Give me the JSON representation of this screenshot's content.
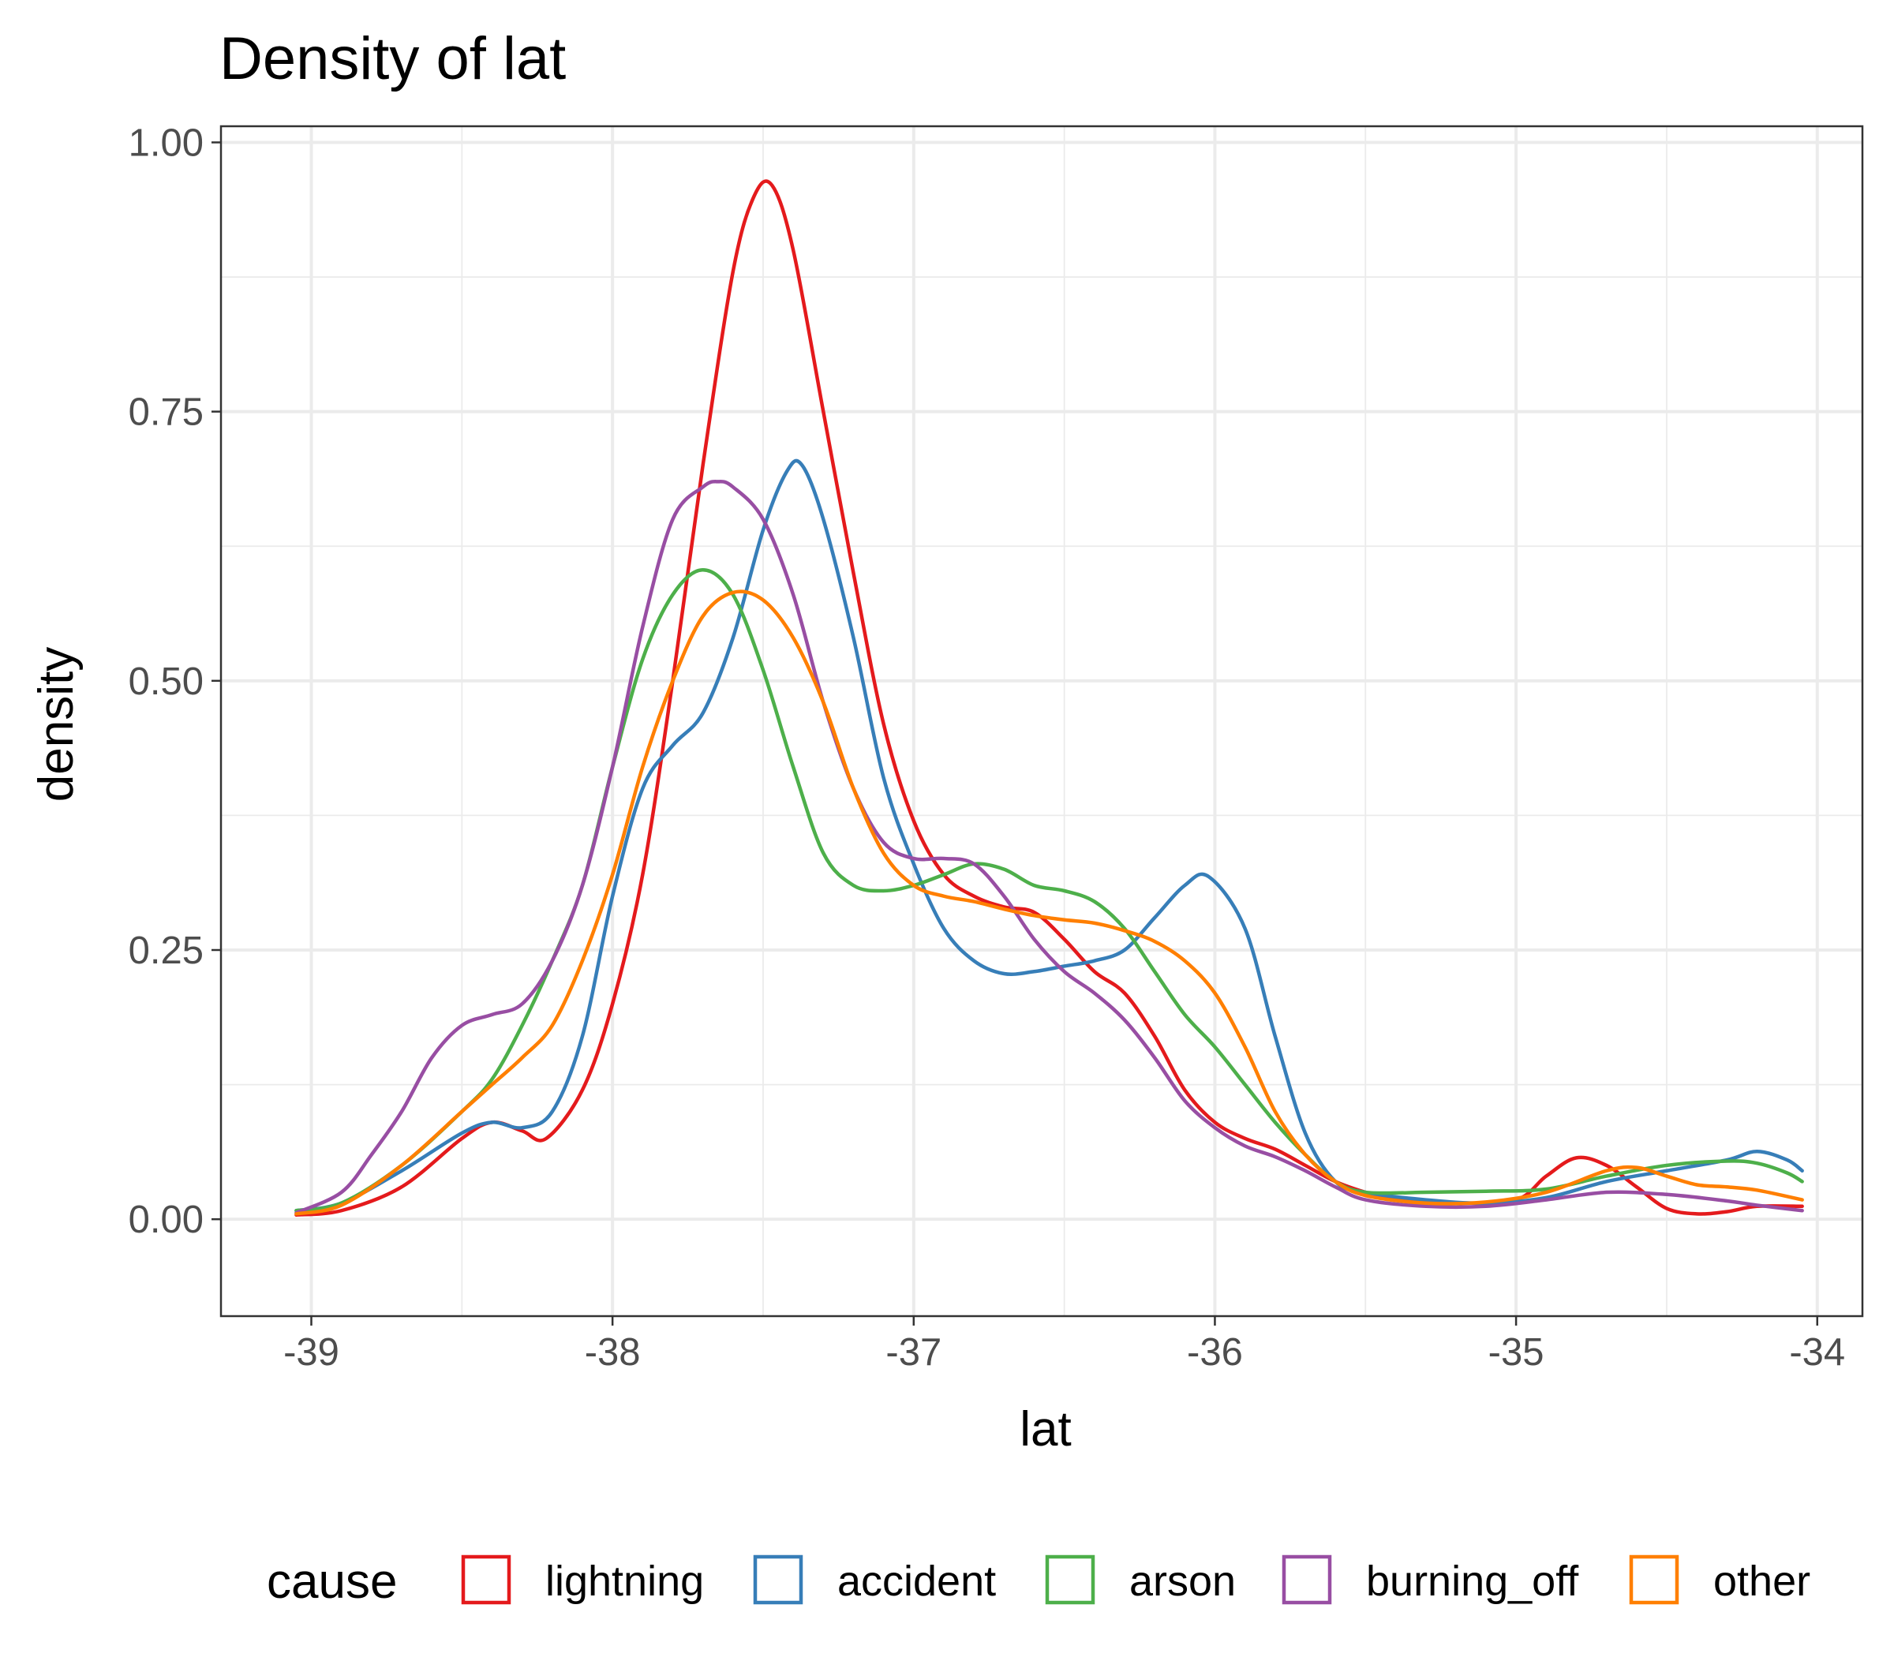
{
  "chart_data": {
    "type": "line",
    "title": "Density of lat",
    "xlabel": "lat",
    "ylabel": "density",
    "xlim": [
      -39.3,
      -33.85
    ],
    "ylim": [
      -0.09,
      1.015
    ],
    "x_ticks": [
      -39,
      -38,
      -37,
      -36,
      -35,
      -34
    ],
    "x_tick_labels": [
      "-39",
      "-38",
      "-37",
      "-36",
      "-35",
      "-34"
    ],
    "y_ticks": [
      0,
      0.25,
      0.5,
      0.75,
      1.0
    ],
    "y_tick_labels": [
      "0.00",
      "0.25",
      "0.50",
      "0.75",
      "1.00"
    ],
    "grid": true,
    "legend": {
      "title": "cause",
      "position": "bottom"
    },
    "series": [
      {
        "name": "lightning",
        "color": "#e41a1c",
        "points": [
          [
            -39.05,
            0.004
          ],
          [
            -38.9,
            0.008
          ],
          [
            -38.7,
            0.03
          ],
          [
            -38.5,
            0.075
          ],
          [
            -38.4,
            0.09
          ],
          [
            -38.3,
            0.082
          ],
          [
            -38.22,
            0.075
          ],
          [
            -38.1,
            0.12
          ],
          [
            -38.0,
            0.2
          ],
          [
            -37.9,
            0.32
          ],
          [
            -37.8,
            0.5
          ],
          [
            -37.7,
            0.7
          ],
          [
            -37.6,
            0.88
          ],
          [
            -37.53,
            0.95
          ],
          [
            -37.47,
            0.96
          ],
          [
            -37.4,
            0.9
          ],
          [
            -37.3,
            0.75
          ],
          [
            -37.2,
            0.6
          ],
          [
            -37.1,
            0.46
          ],
          [
            -37.0,
            0.37
          ],
          [
            -36.9,
            0.32
          ],
          [
            -36.8,
            0.3
          ],
          [
            -36.7,
            0.29
          ],
          [
            -36.6,
            0.285
          ],
          [
            -36.5,
            0.26
          ],
          [
            -36.4,
            0.23
          ],
          [
            -36.3,
            0.21
          ],
          [
            -36.2,
            0.17
          ],
          [
            -36.1,
            0.12
          ],
          [
            -36.0,
            0.09
          ],
          [
            -35.9,
            0.075
          ],
          [
            -35.8,
            0.065
          ],
          [
            -35.7,
            0.05
          ],
          [
            -35.6,
            0.035
          ],
          [
            -35.5,
            0.025
          ],
          [
            -35.4,
            0.018
          ],
          [
            -35.2,
            0.015
          ],
          [
            -35.0,
            0.018
          ],
          [
            -34.9,
            0.04
          ],
          [
            -34.8,
            0.057
          ],
          [
            -34.7,
            0.05
          ],
          [
            -34.6,
            0.03
          ],
          [
            -34.5,
            0.01
          ],
          [
            -34.4,
            0.005
          ],
          [
            -34.3,
            0.007
          ],
          [
            -34.2,
            0.012
          ],
          [
            -34.05,
            0.012
          ]
        ]
      },
      {
        "name": "accident",
        "color": "#377eb8",
        "points": [
          [
            -39.05,
            0.008
          ],
          [
            -38.9,
            0.015
          ],
          [
            -38.7,
            0.045
          ],
          [
            -38.5,
            0.08
          ],
          [
            -38.4,
            0.09
          ],
          [
            -38.3,
            0.085
          ],
          [
            -38.2,
            0.1
          ],
          [
            -38.1,
            0.17
          ],
          [
            -38.0,
            0.3
          ],
          [
            -37.9,
            0.4
          ],
          [
            -37.8,
            0.44
          ],
          [
            -37.7,
            0.47
          ],
          [
            -37.6,
            0.54
          ],
          [
            -37.5,
            0.64
          ],
          [
            -37.42,
            0.695
          ],
          [
            -37.37,
            0.7
          ],
          [
            -37.3,
            0.65
          ],
          [
            -37.2,
            0.54
          ],
          [
            -37.1,
            0.41
          ],
          [
            -37.0,
            0.33
          ],
          [
            -36.9,
            0.27
          ],
          [
            -36.8,
            0.24
          ],
          [
            -36.7,
            0.228
          ],
          [
            -36.6,
            0.23
          ],
          [
            -36.5,
            0.235
          ],
          [
            -36.4,
            0.24
          ],
          [
            -36.3,
            0.25
          ],
          [
            -36.2,
            0.28
          ],
          [
            -36.1,
            0.31
          ],
          [
            -36.02,
            0.318
          ],
          [
            -35.9,
            0.27
          ],
          [
            -35.8,
            0.17
          ],
          [
            -35.7,
            0.08
          ],
          [
            -35.6,
            0.035
          ],
          [
            -35.5,
            0.025
          ],
          [
            -35.3,
            0.018
          ],
          [
            -35.1,
            0.015
          ],
          [
            -34.9,
            0.02
          ],
          [
            -34.7,
            0.035
          ],
          [
            -34.5,
            0.045
          ],
          [
            -34.3,
            0.055
          ],
          [
            -34.2,
            0.063
          ],
          [
            -34.1,
            0.055
          ],
          [
            -34.05,
            0.045
          ]
        ]
      },
      {
        "name": "arson",
        "color": "#4daf4a",
        "points": [
          [
            -39.05,
            0.008
          ],
          [
            -38.9,
            0.015
          ],
          [
            -38.7,
            0.05
          ],
          [
            -38.5,
            0.1
          ],
          [
            -38.4,
            0.13
          ],
          [
            -38.3,
            0.18
          ],
          [
            -38.2,
            0.24
          ],
          [
            -38.1,
            0.31
          ],
          [
            -38.0,
            0.42
          ],
          [
            -37.9,
            0.52
          ],
          [
            -37.8,
            0.58
          ],
          [
            -37.7,
            0.603
          ],
          [
            -37.6,
            0.58
          ],
          [
            -37.5,
            0.51
          ],
          [
            -37.4,
            0.42
          ],
          [
            -37.3,
            0.34
          ],
          [
            -37.2,
            0.31
          ],
          [
            -37.1,
            0.305
          ],
          [
            -37.0,
            0.31
          ],
          [
            -36.9,
            0.32
          ],
          [
            -36.8,
            0.33
          ],
          [
            -36.7,
            0.325
          ],
          [
            -36.6,
            0.31
          ],
          [
            -36.5,
            0.305
          ],
          [
            -36.4,
            0.295
          ],
          [
            -36.3,
            0.27
          ],
          [
            -36.2,
            0.23
          ],
          [
            -36.1,
            0.19
          ],
          [
            -36.0,
            0.16
          ],
          [
            -35.9,
            0.125
          ],
          [
            -35.8,
            0.09
          ],
          [
            -35.7,
            0.06
          ],
          [
            -35.6,
            0.035
          ],
          [
            -35.5,
            0.025
          ],
          [
            -35.3,
            0.025
          ],
          [
            -35.1,
            0.026
          ],
          [
            -34.9,
            0.028
          ],
          [
            -34.7,
            0.04
          ],
          [
            -34.5,
            0.05
          ],
          [
            -34.3,
            0.054
          ],
          [
            -34.2,
            0.052
          ],
          [
            -34.1,
            0.043
          ],
          [
            -34.05,
            0.035
          ]
        ]
      },
      {
        "name": "burning_off",
        "color": "#984ea3",
        "points": [
          [
            -39.05,
            0.006
          ],
          [
            -38.9,
            0.025
          ],
          [
            -38.8,
            0.06
          ],
          [
            -38.7,
            0.1
          ],
          [
            -38.6,
            0.15
          ],
          [
            -38.5,
            0.18
          ],
          [
            -38.4,
            0.19
          ],
          [
            -38.3,
            0.2
          ],
          [
            -38.2,
            0.24
          ],
          [
            -38.1,
            0.31
          ],
          [
            -38.0,
            0.42
          ],
          [
            -37.9,
            0.55
          ],
          [
            -37.8,
            0.65
          ],
          [
            -37.7,
            0.68
          ],
          [
            -37.65,
            0.685
          ],
          [
            -37.6,
            0.68
          ],
          [
            -37.5,
            0.65
          ],
          [
            -37.4,
            0.58
          ],
          [
            -37.3,
            0.48
          ],
          [
            -37.2,
            0.4
          ],
          [
            -37.1,
            0.35
          ],
          [
            -37.0,
            0.335
          ],
          [
            -36.9,
            0.335
          ],
          [
            -36.8,
            0.33
          ],
          [
            -36.7,
            0.3
          ],
          [
            -36.6,
            0.26
          ],
          [
            -36.5,
            0.23
          ],
          [
            -36.4,
            0.21
          ],
          [
            -36.3,
            0.185
          ],
          [
            -36.2,
            0.15
          ],
          [
            -36.1,
            0.11
          ],
          [
            -36.0,
            0.085
          ],
          [
            -35.9,
            0.068
          ],
          [
            -35.8,
            0.058
          ],
          [
            -35.7,
            0.045
          ],
          [
            -35.6,
            0.03
          ],
          [
            -35.5,
            0.018
          ],
          [
            -35.3,
            0.012
          ],
          [
            -35.1,
            0.012
          ],
          [
            -34.9,
            0.018
          ],
          [
            -34.7,
            0.025
          ],
          [
            -34.5,
            0.023
          ],
          [
            -34.3,
            0.017
          ],
          [
            -34.2,
            0.013
          ],
          [
            -34.05,
            0.008
          ]
        ]
      },
      {
        "name": "other",
        "color": "#ff7f00",
        "points": [
          [
            -39.05,
            0.005
          ],
          [
            -38.9,
            0.013
          ],
          [
            -38.7,
            0.05
          ],
          [
            -38.5,
            0.1
          ],
          [
            -38.4,
            0.125
          ],
          [
            -38.3,
            0.15
          ],
          [
            -38.2,
            0.18
          ],
          [
            -38.1,
            0.24
          ],
          [
            -38.0,
            0.32
          ],
          [
            -37.9,
            0.42
          ],
          [
            -37.8,
            0.5
          ],
          [
            -37.7,
            0.56
          ],
          [
            -37.6,
            0.582
          ],
          [
            -37.5,
            0.575
          ],
          [
            -37.4,
            0.54
          ],
          [
            -37.3,
            0.48
          ],
          [
            -37.2,
            0.4
          ],
          [
            -37.1,
            0.34
          ],
          [
            -37.0,
            0.31
          ],
          [
            -36.9,
            0.3
          ],
          [
            -36.8,
            0.295
          ],
          [
            -36.7,
            0.288
          ],
          [
            -36.6,
            0.282
          ],
          [
            -36.5,
            0.278
          ],
          [
            -36.4,
            0.275
          ],
          [
            -36.3,
            0.268
          ],
          [
            -36.2,
            0.258
          ],
          [
            -36.1,
            0.24
          ],
          [
            -36.0,
            0.21
          ],
          [
            -35.9,
            0.16
          ],
          [
            -35.8,
            0.1
          ],
          [
            -35.7,
            0.06
          ],
          [
            -35.6,
            0.035
          ],
          [
            -35.5,
            0.022
          ],
          [
            -35.3,
            0.015
          ],
          [
            -35.1,
            0.016
          ],
          [
            -34.9,
            0.025
          ],
          [
            -34.7,
            0.045
          ],
          [
            -34.6,
            0.048
          ],
          [
            -34.5,
            0.04
          ],
          [
            -34.4,
            0.032
          ],
          [
            -34.3,
            0.03
          ],
          [
            -34.2,
            0.027
          ],
          [
            -34.05,
            0.018
          ]
        ]
      }
    ]
  }
}
